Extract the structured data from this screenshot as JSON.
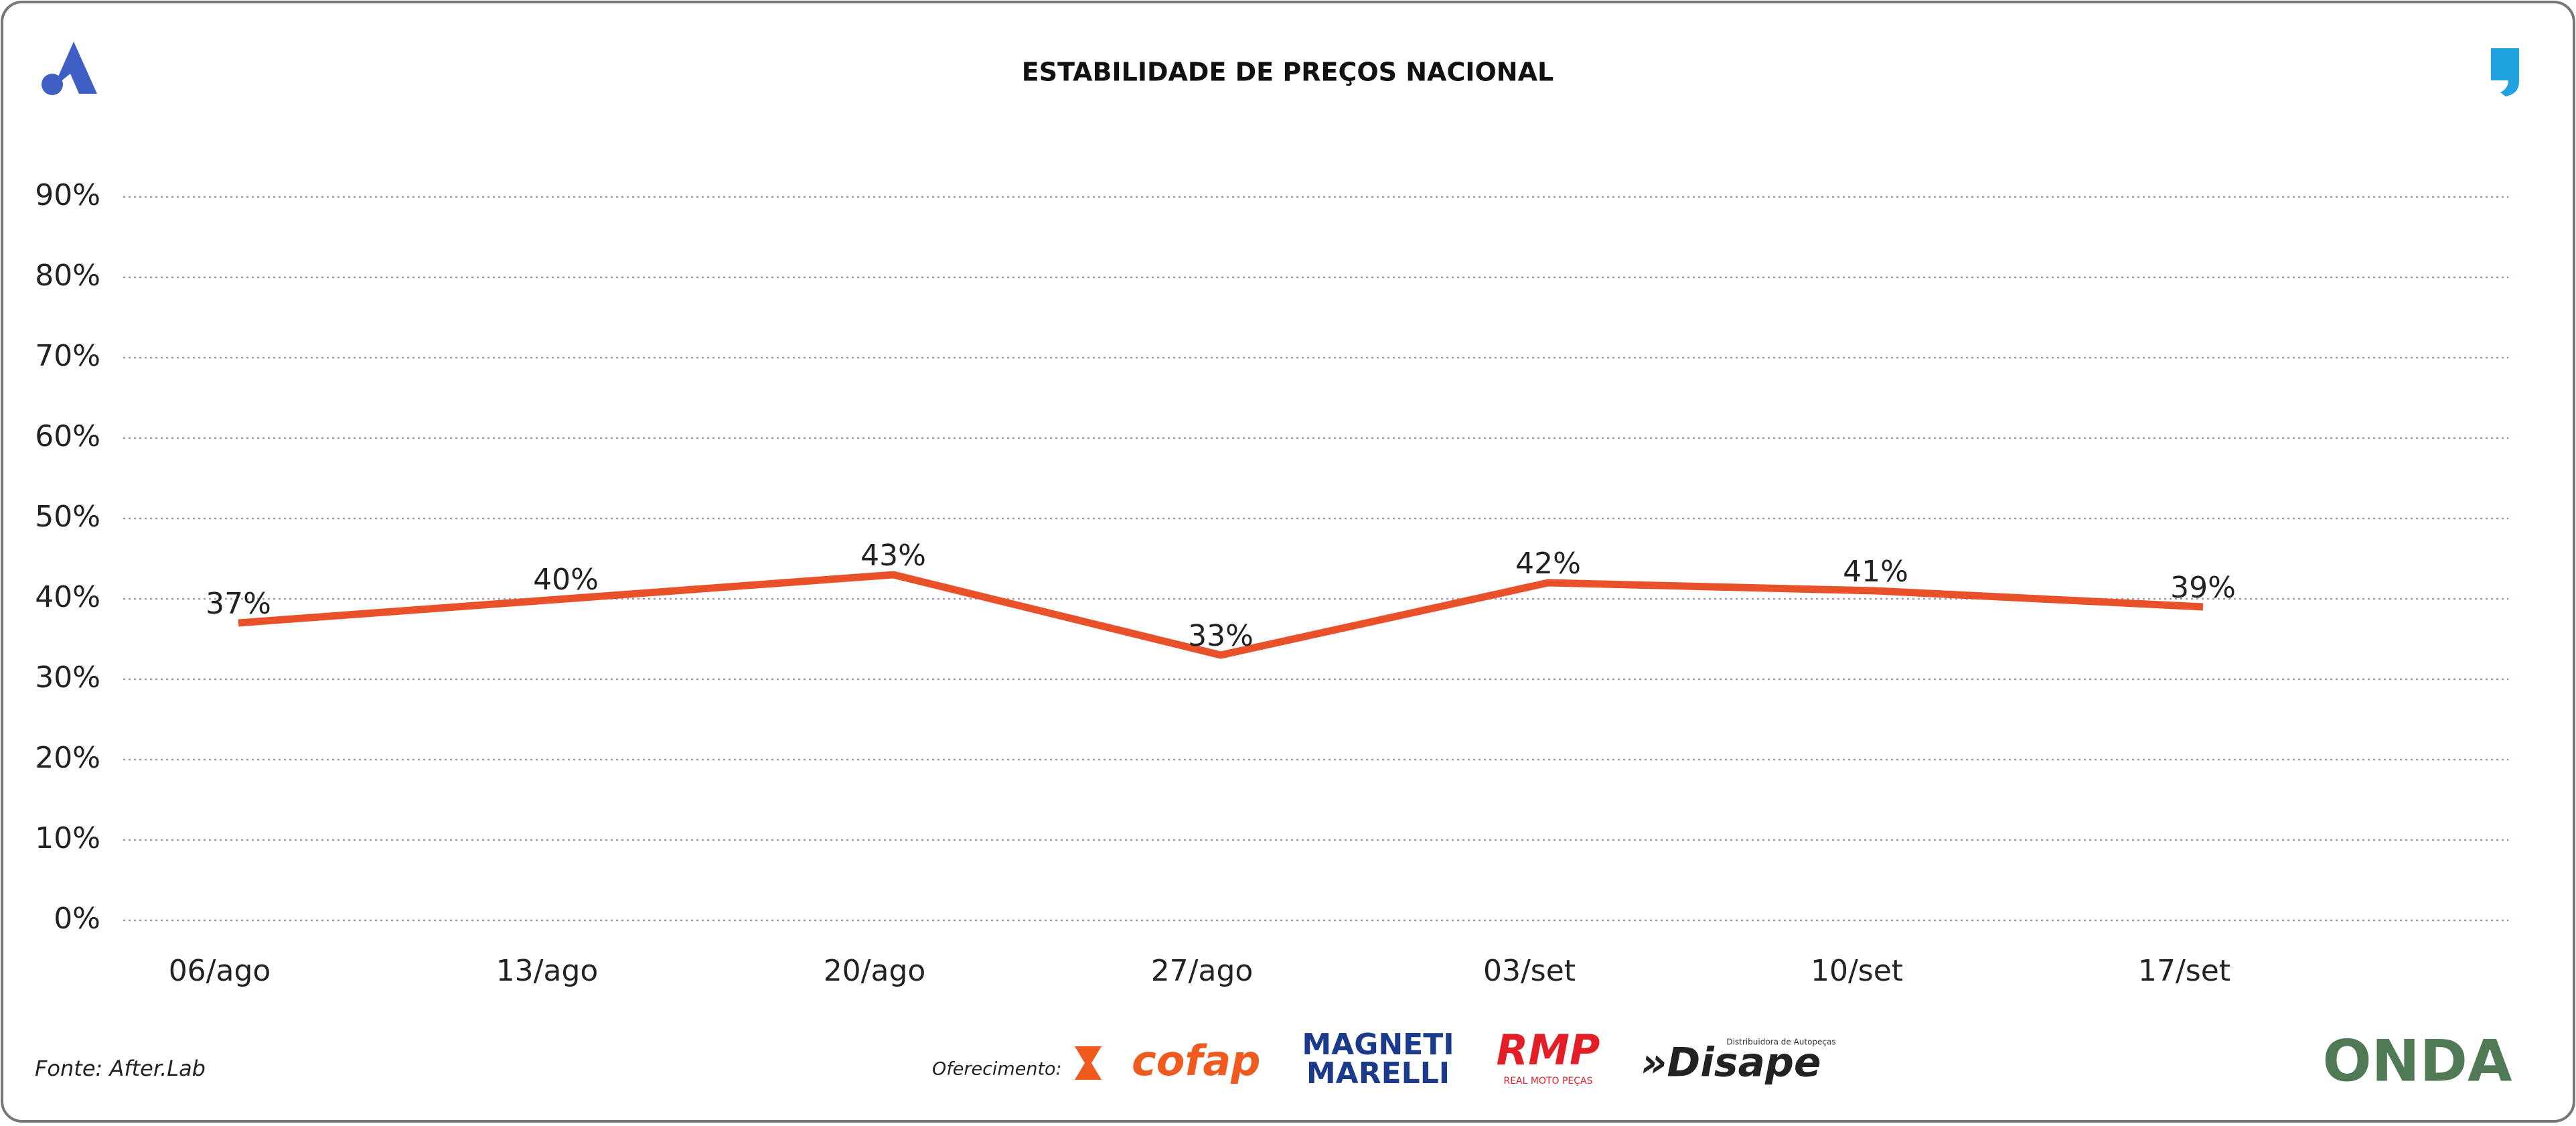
{
  "chart_data": {
    "type": "line",
    "title": "ESTABILIDADE DE PREÇOS NACIONAL",
    "categories": [
      "06/ago",
      "13/ago",
      "20/ago",
      "27/ago",
      "03/set",
      "10/set",
      "17/set"
    ],
    "values": [
      37,
      40,
      43,
      33,
      42,
      41,
      39
    ],
    "value_labels": [
      "37%",
      "40%",
      "43%",
      "33%",
      "42%",
      "41%",
      "39%"
    ],
    "color": "#e8512a",
    "ylim": [
      0,
      90
    ],
    "yticks": [
      {
        "value": 0,
        "label": "0%"
      },
      {
        "value": 10,
        "label": "10%"
      },
      {
        "value": 20,
        "label": "20%"
      },
      {
        "value": 30,
        "label": "30%"
      },
      {
        "value": 40,
        "label": "40%"
      },
      {
        "value": 50,
        "label": "50%"
      },
      {
        "value": 60,
        "label": "60%"
      },
      {
        "value": 70,
        "label": "70%"
      },
      {
        "value": 80,
        "label": "80%"
      },
      {
        "value": 90,
        "label": "90%"
      }
    ],
    "grid": true
  },
  "footer": {
    "source": "Fonte: After.Lab",
    "sponsor_label": "Oferecimento:",
    "sponsors": [
      "cofap",
      "MAGNETI",
      "MARELLI",
      "RMP",
      "REAL MOTO PEÇAS",
      "Distribuidora de Autopeças",
      "»Disape"
    ],
    "brand": "ONDA"
  }
}
